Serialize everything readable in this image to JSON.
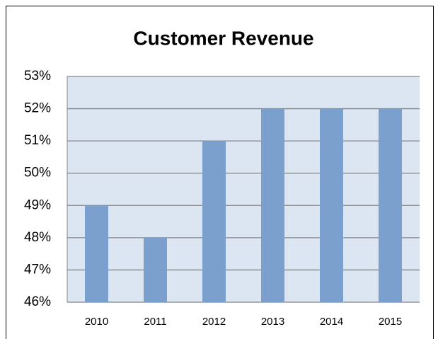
{
  "chart_data": {
    "type": "bar",
    "title": "Customer Revenue",
    "categories": [
      "2010",
      "2011",
      "2012",
      "2013",
      "2014",
      "2015"
    ],
    "values": [
      49,
      48,
      51,
      52,
      52,
      52
    ],
    "color": "#7ba0cd",
    "ylim": [
      46,
      53
    ],
    "yticks": [
      {
        "value": 46,
        "label": "46%"
      },
      {
        "value": 47,
        "label": "47%"
      },
      {
        "value": 48,
        "label": "48%"
      },
      {
        "value": 49,
        "label": "49%"
      },
      {
        "value": 50,
        "label": "50%"
      },
      {
        "value": 51,
        "label": "51%"
      },
      {
        "value": 52,
        "label": "52%"
      },
      {
        "value": 53,
        "label": "53%"
      }
    ],
    "grid": true
  }
}
